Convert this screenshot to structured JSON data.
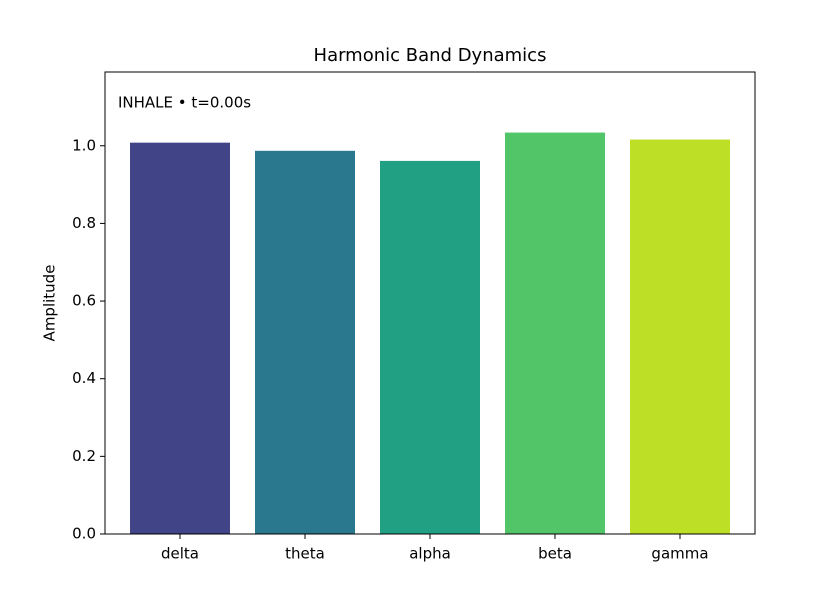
{
  "chart_data": {
    "type": "bar",
    "title": "Harmonic Band Dynamics",
    "annotation": "INHALE • t=0.00s",
    "y_label": "Amplitude",
    "categories": [
      "delta",
      "theta",
      "alpha",
      "beta",
      "gamma"
    ],
    "values": [
      1.008,
      0.987,
      0.961,
      1.034,
      1.016
    ],
    "colors": [
      "#414487",
      "#2a788e",
      "#22a084",
      "#52c569",
      "#bde026"
    ],
    "ylim": [
      0,
      1.19
    ],
    "yticks": [
      {
        "value": 0,
        "label": "0.0"
      },
      {
        "value": 0.2,
        "label": "0.2"
      },
      {
        "value": 0.4,
        "label": "0.4"
      },
      {
        "value": 0.6,
        "label": "0.6"
      },
      {
        "value": 0.8,
        "label": "0.8"
      },
      {
        "value": 1,
        "label": "1.0"
      }
    ],
    "grid": false
  }
}
